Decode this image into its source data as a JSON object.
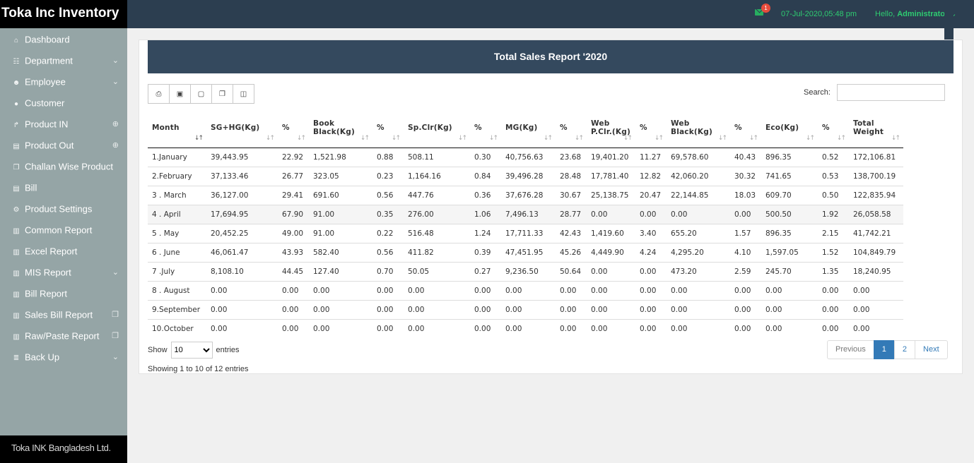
{
  "brand": "Toka Inc Inventory",
  "header": {
    "notification_count": "1",
    "datetime": "07-Jul-2020,05:48 pm",
    "greeting": "Hello,",
    "username": "Administrator",
    "user_caret": "⌄"
  },
  "sidebar": {
    "items": [
      {
        "label": "Dashboard",
        "icon": "home-icon",
        "glyph": "⌂",
        "right": ""
      },
      {
        "label": "Department",
        "icon": "sitemap-icon",
        "glyph": "☷",
        "right": "⌄"
      },
      {
        "label": "Employee",
        "icon": "users-icon",
        "glyph": "☻",
        "right": "⌄"
      },
      {
        "label": "Customer",
        "icon": "user-icon",
        "glyph": "●",
        "right": ""
      },
      {
        "label": "Product IN",
        "icon": "share-icon",
        "glyph": "↱",
        "right": "⊕"
      },
      {
        "label": "Product Out",
        "icon": "truck-icon",
        "glyph": "▤",
        "right": "⊕"
      },
      {
        "label": "Challan Wise Product",
        "icon": "copy-icon",
        "glyph": "❐",
        "right": ""
      },
      {
        "label": "Bill",
        "icon": "truck-icon",
        "glyph": "▤",
        "right": ""
      },
      {
        "label": "Product Settings",
        "icon": "cogs-icon",
        "glyph": "⚙",
        "right": ""
      },
      {
        "label": "Common Report",
        "icon": "bar-chart-icon",
        "glyph": "▥",
        "right": ""
      },
      {
        "label": "Excel Report",
        "icon": "bar-chart-icon",
        "glyph": "▥",
        "right": ""
      },
      {
        "label": "MIS Report",
        "icon": "bar-chart-icon",
        "glyph": "▥",
        "right": "⌄"
      },
      {
        "label": "Bill Report",
        "icon": "bar-chart-icon",
        "glyph": "▥",
        "right": ""
      },
      {
        "label": "Sales Bill Report",
        "icon": "bar-chart-icon",
        "glyph": "▥",
        "right": "❐"
      },
      {
        "label": "Raw/Paste Report",
        "icon": "bar-chart-icon",
        "glyph": "▥",
        "right": "❐"
      },
      {
        "label": "Back Up",
        "icon": "database-icon",
        "glyph": "≣",
        "right": "⌄"
      }
    ],
    "footer": "Toka INK Bangladesh Ltd."
  },
  "report": {
    "title": "Total Sales Report '2020",
    "toolbar": [
      {
        "name": "print-button",
        "icon": "print-icon",
        "glyph": "⎙"
      },
      {
        "name": "excel-button",
        "icon": "excel-icon",
        "glyph": "▣"
      },
      {
        "name": "pdf-button",
        "icon": "pdf-icon",
        "glyph": "▢"
      },
      {
        "name": "copy-button",
        "icon": "copy-icon",
        "glyph": "❐"
      },
      {
        "name": "columns-button",
        "icon": "columns-icon",
        "glyph": "◫"
      }
    ],
    "search_label": "Search:",
    "search_value": "",
    "columns": [
      "Month",
      "SG+HG(Kg)",
      "%",
      "Book Black(Kg)",
      "%",
      "Sp.Clr(Kg)",
      "%",
      "MG(Kg)",
      "%",
      "Web P.Clr.(Kg)",
      "%",
      "Web Black(Kg)",
      "%",
      "Eco(Kg)",
      "%",
      "Total Weight"
    ],
    "rows": [
      [
        "1.January",
        "39,443.95",
        "22.92",
        "1,521.98",
        "0.88",
        "508.11",
        "0.30",
        "40,756.63",
        "23.68",
        "19,401.20",
        "11.27",
        "69,578.60",
        "40.43",
        "896.35",
        "0.52",
        "172,106.81"
      ],
      [
        "2.February",
        "37,133.46",
        "26.77",
        "323.05",
        "0.23",
        "1,164.16",
        "0.84",
        "39,496.28",
        "28.48",
        "17,781.40",
        "12.82",
        "42,060.20",
        "30.32",
        "741.65",
        "0.53",
        "138,700.19"
      ],
      [
        "3 . March",
        "36,127.00",
        "29.41",
        "691.60",
        "0.56",
        "447.76",
        "0.36",
        "37,676.28",
        "30.67",
        "25,138.75",
        "20.47",
        "22,144.85",
        "18.03",
        "609.70",
        "0.50",
        "122,835.94"
      ],
      [
        "4 . April",
        "17,694.95",
        "67.90",
        "91.00",
        "0.35",
        "276.00",
        "1.06",
        "7,496.13",
        "28.77",
        "0.00",
        "0.00",
        "0.00",
        "0.00",
        "500.50",
        "1.92",
        "26,058.58"
      ],
      [
        "5 . May",
        "20,452.25",
        "49.00",
        "91.00",
        "0.22",
        "516.48",
        "1.24",
        "17,711.33",
        "42.43",
        "1,419.60",
        "3.40",
        "655.20",
        "1.57",
        "896.35",
        "2.15",
        "41,742.21"
      ],
      [
        "6 . June",
        "46,061.47",
        "43.93",
        "582.40",
        "0.56",
        "411.82",
        "0.39",
        "47,451.95",
        "45.26",
        "4,449.90",
        "4.24",
        "4,295.20",
        "4.10",
        "1,597.05",
        "1.52",
        "104,849.79"
      ],
      [
        "7 .July",
        "8,108.10",
        "44.45",
        "127.40",
        "0.70",
        "50.05",
        "0.27",
        "9,236.50",
        "50.64",
        "0.00",
        "0.00",
        "473.20",
        "2.59",
        "245.70",
        "1.35",
        "18,240.95"
      ],
      [
        "8 . August",
        "0.00",
        "0.00",
        "0.00",
        "0.00",
        "0.00",
        "0.00",
        "0.00",
        "0.00",
        "0.00",
        "0.00",
        "0.00",
        "0.00",
        "0.00",
        "0.00",
        "0.00"
      ],
      [
        "9.September",
        "0.00",
        "0.00",
        "0.00",
        "0.00",
        "0.00",
        "0.00",
        "0.00",
        "0.00",
        "0.00",
        "0.00",
        "0.00",
        "0.00",
        "0.00",
        "0.00",
        "0.00"
      ],
      [
        "10.October",
        "0.00",
        "0.00",
        "0.00",
        "0.00",
        "0.00",
        "0.00",
        "0.00",
        "0.00",
        "0.00",
        "0.00",
        "0.00",
        "0.00",
        "0.00",
        "0.00",
        "0.00"
      ]
    ],
    "highlight_row": 3,
    "length": {
      "label_before": "Show",
      "selected": "10",
      "label_after": "entries"
    },
    "info": "Showing 1 to 10 of 12 entries",
    "pagination": {
      "previous": "Previous",
      "pages": [
        "1",
        "2"
      ],
      "active": "1",
      "next": "Next"
    }
  }
}
